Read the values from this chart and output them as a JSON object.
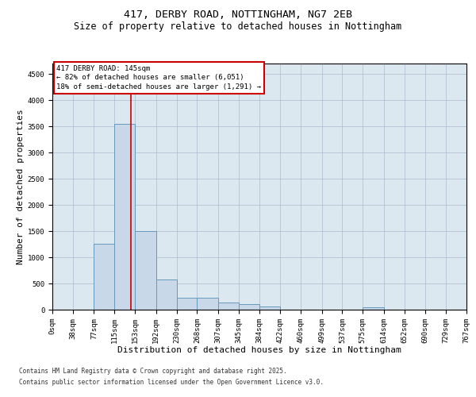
{
  "title1": "417, DERBY ROAD, NOTTINGHAM, NG7 2EB",
  "title2": "Size of property relative to detached houses in Nottingham",
  "xlabel": "Distribution of detached houses by size in Nottingham",
  "ylabel": "Number of detached properties",
  "footnote1": "Contains HM Land Registry data © Crown copyright and database right 2025.",
  "footnote2": "Contains public sector information licensed under the Open Government Licence v3.0.",
  "bin_edges": [
    0,
    38,
    77,
    115,
    153,
    192,
    230,
    268,
    307,
    345,
    384,
    422,
    460,
    499,
    537,
    575,
    614,
    652,
    690,
    729,
    767
  ],
  "bar_heights": [
    0,
    0,
    1260,
    3550,
    1500,
    580,
    230,
    230,
    130,
    100,
    60,
    0,
    0,
    0,
    0,
    50,
    0,
    0,
    0,
    0
  ],
  "bar_color": "#c8d8e8",
  "bar_edge_color": "#6699bb",
  "grid_color": "#aabbcc",
  "property_line_x": 145,
  "property_line_color": "#cc0000",
  "annotation_box_color": "#cc0000",
  "annotation_text": "417 DERBY ROAD: 145sqm\n← 82% of detached houses are smaller (6,051)\n18% of semi-detached houses are larger (1,291) →",
  "ylim": [
    0,
    4700
  ],
  "yticks": [
    0,
    500,
    1000,
    1500,
    2000,
    2500,
    3000,
    3500,
    4000,
    4500
  ],
  "bg_color": "#dce8f0",
  "fig_bg_color": "#ffffff",
  "title1_fontsize": 9.5,
  "title2_fontsize": 8.5,
  "tick_fontsize": 6.5,
  "label_fontsize": 8,
  "annotation_fontsize": 6.5,
  "footnote_fontsize": 5.5
}
